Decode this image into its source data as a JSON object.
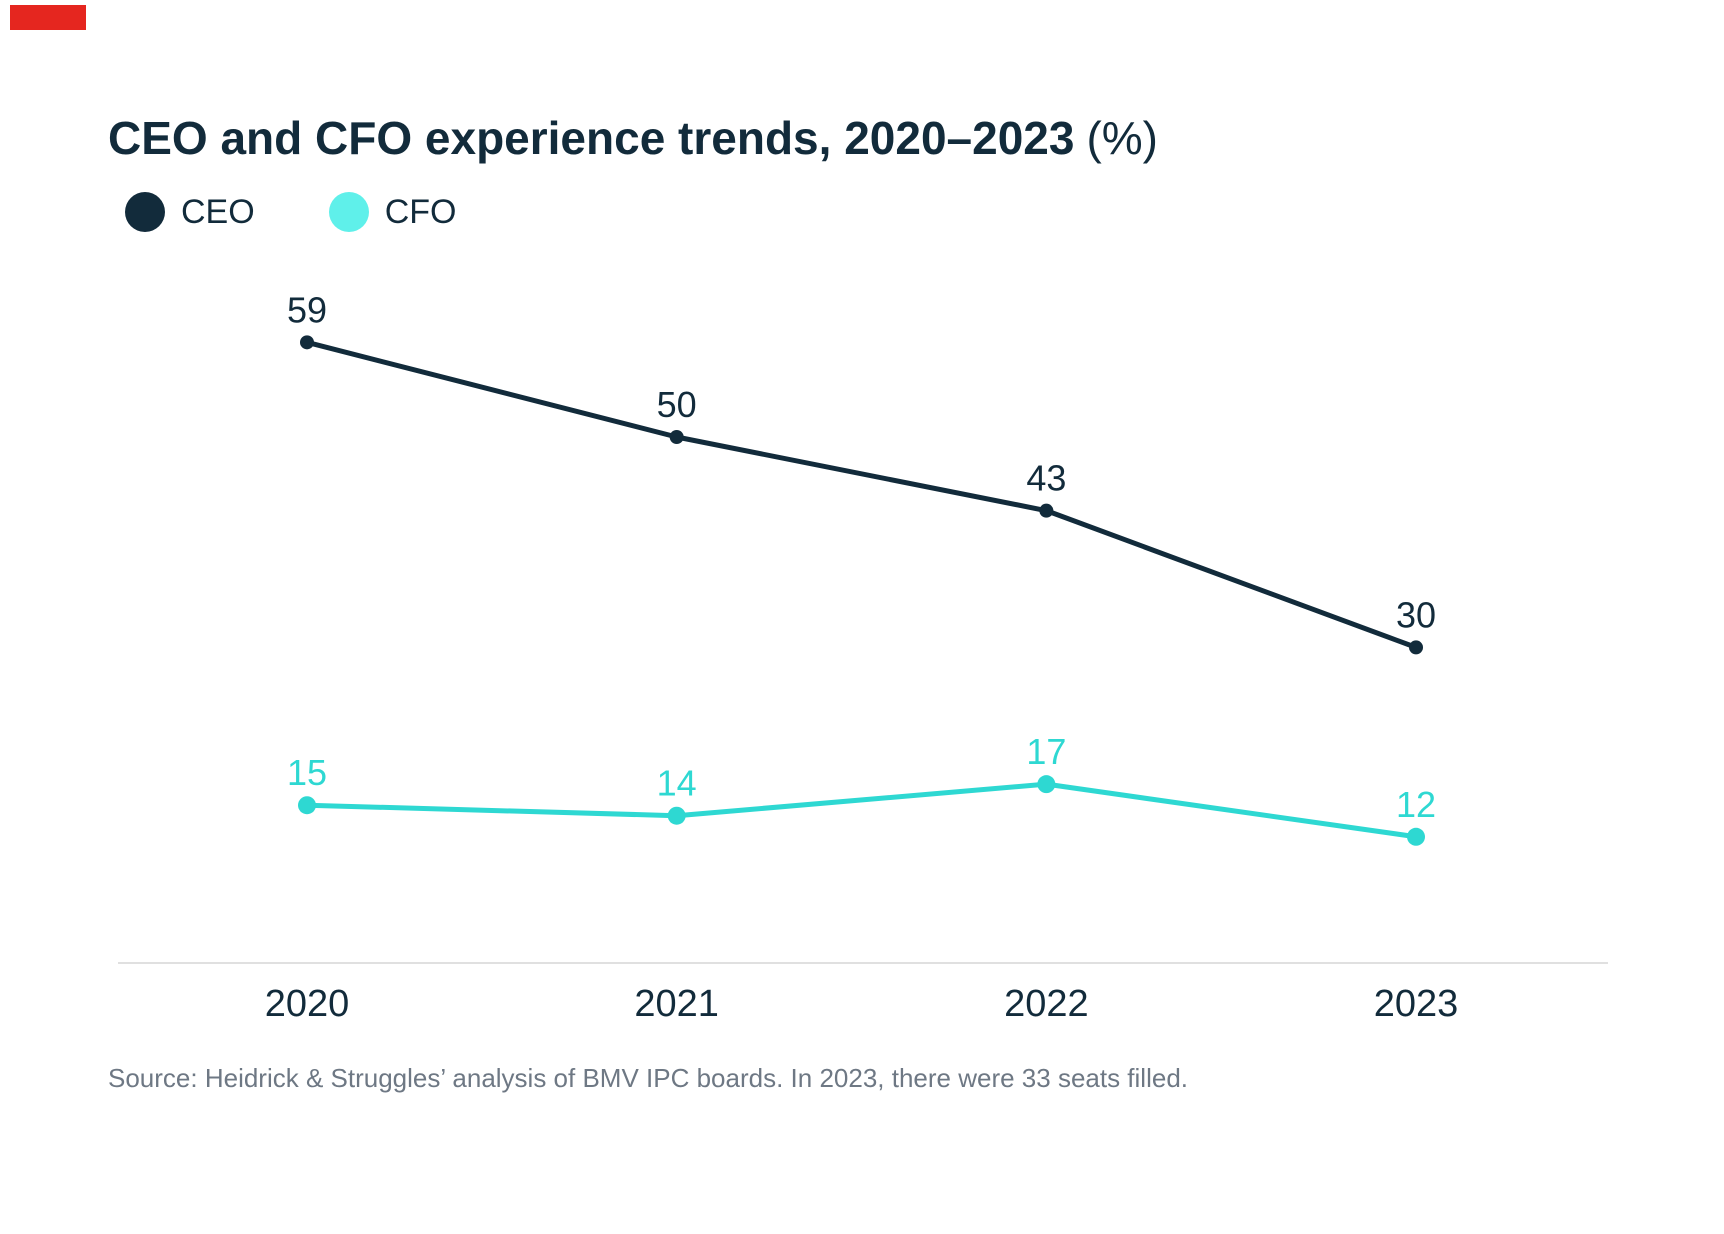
{
  "colors": {
    "background": "#ffffff",
    "navy": "#122b3b",
    "cfo_line": "#2ed8d2",
    "cfo_legend_dot": "#5ff0ea",
    "axis_line": "#e0e0e0",
    "source_text": "#6e7884",
    "brand_red": "#e5261f"
  },
  "title": {
    "main": "CEO and CFO experience trends, 2020–2023",
    "suffix": "(%)"
  },
  "legend": {
    "items": [
      {
        "label": "CEO",
        "color": "#122b3b"
      },
      {
        "label": "CFO",
        "color": "#5ff0ea"
      }
    ]
  },
  "chart_data": {
    "type": "line",
    "title": "CEO and CFO experience trends, 2020–2023 (%)",
    "categories": [
      "2020",
      "2021",
      "2022",
      "2023"
    ],
    "series": [
      {
        "name": "CEO",
        "color": "#122b3b",
        "values": [
          59,
          50,
          43,
          30
        ]
      },
      {
        "name": "CFO",
        "color": "#2ed8d2",
        "values": [
          15,
          14,
          17,
          12
        ]
      }
    ],
    "xlabel": "",
    "ylabel": "",
    "ylim": [
      0,
      70
    ],
    "grid": false,
    "y_axis_labels": false,
    "data_labels": true,
    "legend_position": "top-left"
  },
  "source": {
    "text": "Source: Heidrick & Struggles’ analysis of BMV IPC boards. In 2023, there were 33 seats filled."
  }
}
